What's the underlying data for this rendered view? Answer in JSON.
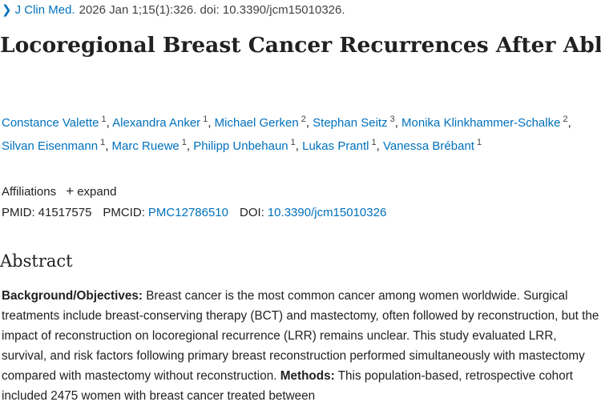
{
  "citation": {
    "journal": "J Clin Med.",
    "details": "2026 Jan 1;15(1):326. doi: 10.3390/jcm15010326."
  },
  "article": {
    "title": "Locoregional Breast Cancer Recurrences After Ablatio Mammae and Primary Reconstruction"
  },
  "authors": [
    {
      "name": "Constance Valette",
      "aff": "1"
    },
    {
      "name": "Alexandra Anker",
      "aff": "1"
    },
    {
      "name": "Michael Gerken",
      "aff": "2"
    },
    {
      "name": "Stephan Seitz",
      "aff": "3"
    },
    {
      "name": "Monika Klinkhammer-Schalke",
      "aff": "2"
    },
    {
      "name": "Silvan Eisenmann",
      "aff": "1"
    },
    {
      "name": "Marc Ruewe",
      "aff": "1"
    },
    {
      "name": "Philipp Unbehaun",
      "aff": "1"
    },
    {
      "name": "Lukas Prantl",
      "aff": "1"
    },
    {
      "name": "Vanessa Brébant",
      "aff": "1"
    }
  ],
  "affiliations": {
    "label": "Affiliations",
    "expand_label": "expand"
  },
  "identifiers": {
    "pmid_label": "PMID:",
    "pmid": "41517575",
    "pmcid_label": "PMCID:",
    "pmcid": "PMC12786510",
    "doi_label": "DOI:",
    "doi": "10.3390/jcm15010326"
  },
  "abstract": {
    "heading": "Abstract",
    "background_label": "Background/Objectives:",
    "background_text": " Breast cancer is the most common cancer among women worldwide. Surgical treatments include breast-conserving therapy (BCT) and mastectomy, often followed by reconstruction, but the impact of reconstruction on locoregional recurrence (LRR) remains unclear. This study evaluated LRR, survival, and risk factors following primary breast reconstruction performed simultaneously with mastectomy compared with mastectomy without reconstruction. ",
    "methods_label": "Methods:",
    "methods_text": " This population-based, retrospective cohort included 2475 women with breast cancer treated between"
  }
}
